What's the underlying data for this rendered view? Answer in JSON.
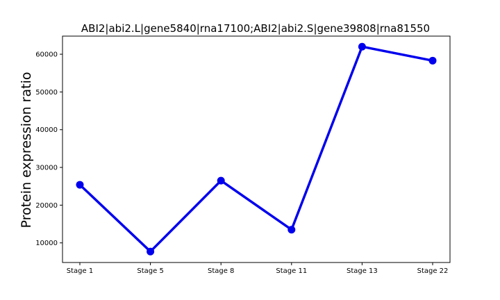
{
  "chart_data": {
    "type": "line",
    "title": "ABI2|abi2.L|gene5840|rna17100;ABI2|abi2.S|gene39808|rna81550",
    "xlabel": "",
    "ylabel": "Protein expression ratio",
    "categories": [
      "Stage 1",
      "Stage 5",
      "Stage 8",
      "Stage 11",
      "Stage 13",
      "Stage 22"
    ],
    "series": [
      {
        "values": [
          25400,
          7700,
          26500,
          13500,
          62000,
          58300
        ],
        "color": "#0000ee"
      }
    ],
    "ylim": [
      4800,
      64800
    ],
    "yticks": [
      10000,
      20000,
      30000,
      40000,
      50000,
      60000
    ],
    "ytick_labels": [
      "10000",
      "20000",
      "30000",
      "40000",
      "50000",
      "60000"
    ],
    "grid": false,
    "legend": "none"
  }
}
